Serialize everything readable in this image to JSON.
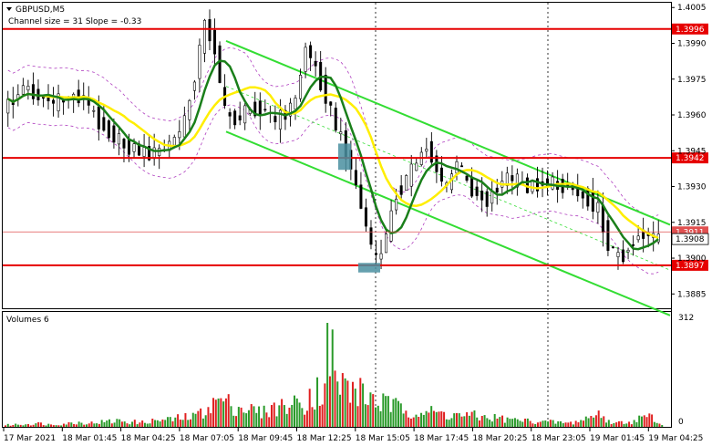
{
  "chart_data": {
    "type": "candlestick",
    "title": "GBPUSD,M5",
    "subtitle": "Channel size = 31 Slope = -0.33",
    "y_ticks": [
      "1.4005",
      "1.3990",
      "1.3975",
      "1.3960",
      "1.3945",
      "1.3930",
      "1.3915",
      "1.3900",
      "1.3885"
    ],
    "ylim": [
      1.3879,
      1.4007
    ],
    "levels": [
      {
        "price": 1.3996,
        "label": "1.3996",
        "color": "#e60000"
      },
      {
        "price": 1.3942,
        "label": "1.3942",
        "color": "#e60000"
      },
      {
        "price": 1.3897,
        "label": "1.3897",
        "color": "#e60000"
      }
    ],
    "bid_line": {
      "price": 1.3911,
      "label": "1.3911"
    },
    "last_price": {
      "price": 1.3908,
      "label": "1.3908"
    },
    "x_ticks": [
      "17 Mar 2021",
      "18 Mar 01:45",
      "18 Mar 04:25",
      "18 Mar 07:05",
      "18 Mar 09:45",
      "18 Mar 12:25",
      "18 Mar 15:05",
      "18 Mar 17:45",
      "18 Mar 20:25",
      "18 Mar 23:05",
      "19 Mar 01:45",
      "19 Mar 04:25"
    ],
    "volume_panel": {
      "label": "Volumes 6",
      "max_tick": "312",
      "min_tick": "0"
    },
    "colors": {
      "ma_fast": "#ffee00",
      "ma_slow": "#1a7f1a",
      "channel": "#33dd33",
      "envelope": "#b040c0",
      "volume_up": "#2a9a2a",
      "volume_down": "#e02020",
      "marker": "#4a8fa0",
      "level": "#e60000"
    },
    "price_path": [
      1.3963,
      1.3966,
      1.3972,
      1.3969,
      1.3967,
      1.3965,
      1.3966,
      1.3968,
      1.3967,
      1.396,
      1.3955,
      1.3951,
      1.3947,
      1.3946,
      1.3944,
      1.3944,
      1.3946,
      1.395,
      1.3957,
      1.3977,
      1.3998,
      1.3988,
      1.3961,
      1.3958,
      1.3961,
      1.3963,
      1.3962,
      1.3957,
      1.3961,
      1.3966,
      1.3989,
      1.3979,
      1.3968,
      1.3955,
      1.3945,
      1.393,
      1.3913,
      1.3898,
      1.3909,
      1.3927,
      1.3933,
      1.394,
      1.3947,
      1.3937,
      1.3929,
      1.3941,
      1.3931,
      1.3927,
      1.3924,
      1.393,
      1.3934,
      1.3932,
      1.393,
      1.3931,
      1.3932,
      1.393,
      1.3931,
      1.3927,
      1.3925,
      1.392,
      1.3906,
      1.39,
      1.3904,
      1.391,
      1.391,
      1.3908
    ],
    "volumes": [
      8,
      10,
      12,
      14,
      10,
      12,
      15,
      18,
      16,
      20,
      22,
      25,
      20,
      18,
      24,
      28,
      30,
      35,
      40,
      55,
      90,
      110,
      95,
      80,
      70,
      60,
      75,
      85,
      90,
      100,
      130,
      150,
      312,
      180,
      160,
      140,
      120,
      100,
      90,
      80,
      70,
      65,
      60,
      55,
      50,
      48,
      45,
      40,
      38,
      35,
      30,
      28,
      25,
      22,
      20,
      18,
      16,
      25,
      40,
      55,
      20,
      18,
      22,
      35,
      40,
      15
    ]
  }
}
